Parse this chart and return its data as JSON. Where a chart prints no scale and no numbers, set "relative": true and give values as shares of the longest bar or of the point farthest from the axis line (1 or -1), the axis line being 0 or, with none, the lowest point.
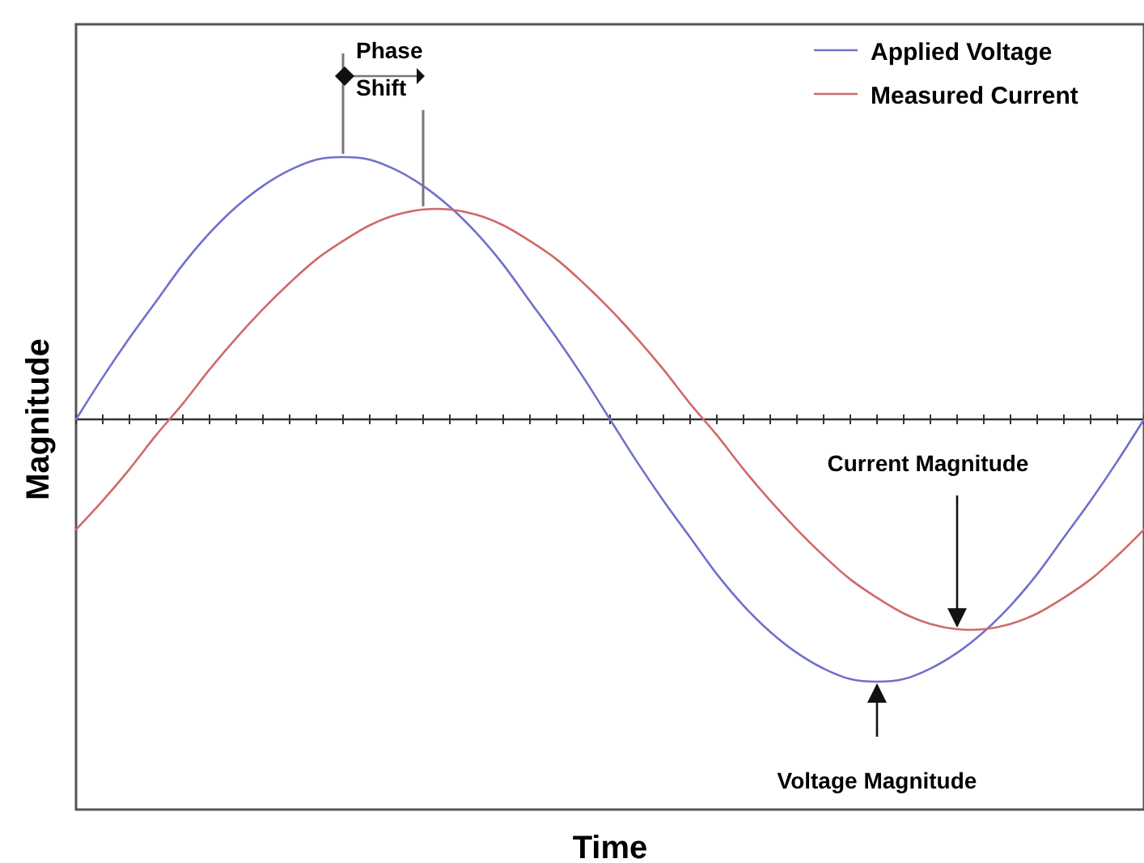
{
  "chart_data": {
    "type": "line",
    "relative": true,
    "xlabel": "Time",
    "ylabel": "Magnitude",
    "legend": "top right",
    "categories": [
      null,
      null,
      null,
      null,
      null,
      null,
      null,
      null,
      null,
      null,
      null,
      null,
      null,
      null,
      null,
      null,
      null,
      null,
      null,
      null,
      null,
      null,
      null,
      null,
      null,
      null,
      null,
      null,
      null,
      null,
      null,
      null,
      null,
      null,
      null,
      null,
      null,
      null,
      null,
      null,
      null
    ],
    "series": [
      {
        "name": "Applied Voltage",
        "color": "#7070cc",
        "values": [
          0,
          0.16,
          0.31,
          0.45,
          0.59,
          0.71,
          0.81,
          0.89,
          0.95,
          0.99,
          1,
          0.99,
          0.95,
          0.89,
          0.81,
          0.71,
          0.59,
          0.45,
          0.31,
          0.16,
          0,
          -0.16,
          -0.31,
          -0.45,
          -0.59,
          -0.71,
          -0.81,
          -0.89,
          -0.95,
          -0.99,
          -1,
          -0.99,
          -0.95,
          -0.89,
          -0.81,
          -0.71,
          -0.59,
          -0.45,
          -0.31,
          -0.16,
          0
        ]
      },
      {
        "name": "Measured Current",
        "color": "#d06a6a",
        "values": [
          -0.42,
          -0.31,
          -0.19,
          -0.06,
          0.06,
          0.19,
          0.31,
          0.42,
          0.52,
          0.61,
          0.68,
          0.74,
          0.78,
          0.8,
          0.8,
          0.78,
          0.74,
          0.68,
          0.61,
          0.52,
          0.42,
          0.31,
          0.19,
          0.06,
          -0.06,
          -0.19,
          -0.31,
          -0.42,
          -0.52,
          -0.61,
          -0.68,
          -0.74,
          -0.78,
          -0.8,
          -0.8,
          -0.78,
          -0.74,
          -0.68,
          -0.61,
          -0.52,
          -0.42
        ]
      }
    ],
    "annotations": [
      "Phase Shift",
      "Current Magnitude",
      "Voltage Magnitude"
    ]
  }
}
